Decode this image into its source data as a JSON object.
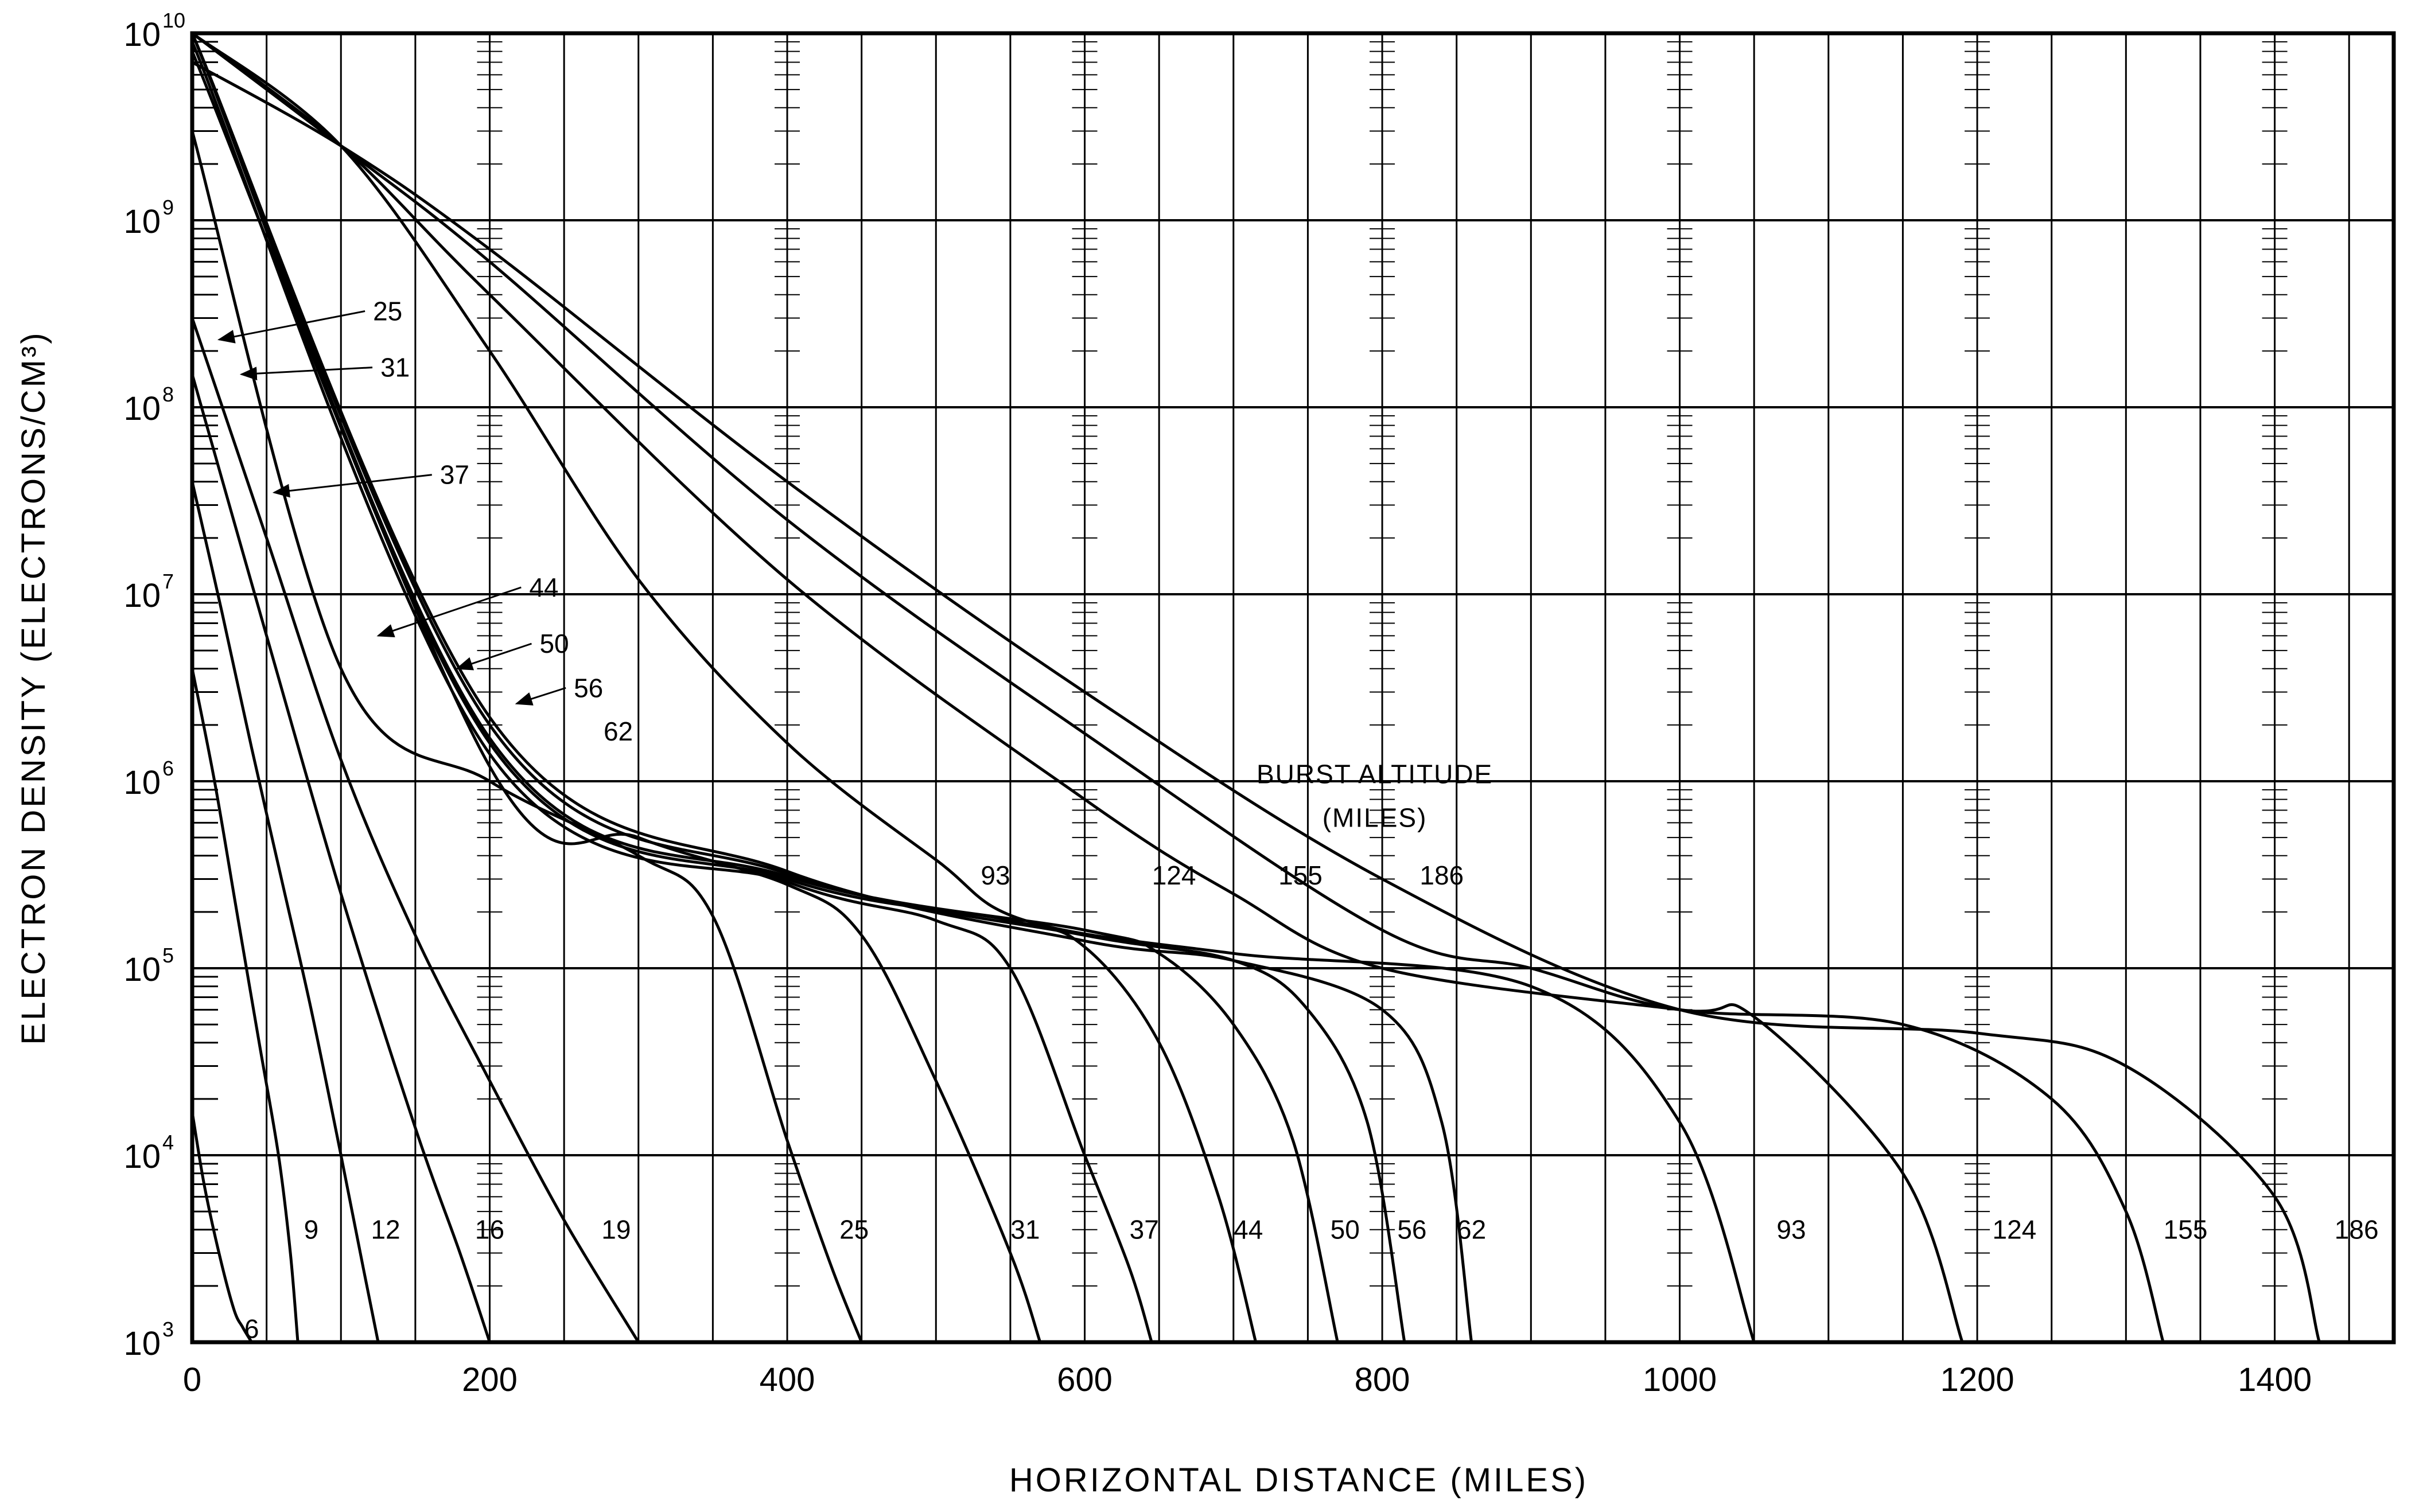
{
  "chart_data": {
    "type": "line",
    "title": "",
    "xlabel": "HORIZONTAL DISTANCE (MILES)",
    "ylabel": "ELECTRON DENSITY (ELECTRONS/CM³)",
    "xlim": [
      0,
      1480
    ],
    "ylim": [
      1000,
      10000000000
    ],
    "yscale": "log",
    "grid": true,
    "legend": "none",
    "x_ticks": [
      0,
      200,
      400,
      600,
      800,
      1000,
      1200,
      1400
    ],
    "x_tick_labels": [
      "0",
      "200",
      "400",
      "600",
      "800",
      "1000",
      "1200",
      "1400"
    ],
    "y_ticks": [
      1000,
      10000,
      100000,
      1000000,
      10000000,
      100000000,
      1000000000,
      10000000000
    ],
    "y_tick_labels": [
      {
        "base": "10",
        "exp": "3"
      },
      {
        "base": "10",
        "exp": "4"
      },
      {
        "base": "10",
        "exp": "5"
      },
      {
        "base": "10",
        "exp": "6"
      },
      {
        "base": "10",
        "exp": "7"
      },
      {
        "base": "10",
        "exp": "8"
      },
      {
        "base": "10",
        "exp": "9"
      },
      {
        "base": "10",
        "exp": "10"
      }
    ],
    "annotation": {
      "line1": "BURST ALTITUDE",
      "line2": "(MILES)"
    },
    "series": [
      {
        "name": "6",
        "x": [
          0,
          8,
          18,
          28,
          34,
          40
        ],
        "y": [
          17000,
          7000,
          3000,
          1500,
          1200,
          1000
        ]
      },
      {
        "name": "9",
        "x": [
          0,
          15,
          30,
          45,
          58,
          66,
          71
        ],
        "y": [
          4000000,
          1000000,
          200000,
          40000,
          10000,
          3000,
          1000
        ]
      },
      {
        "name": "12",
        "x": [
          0,
          20,
          40,
          60,
          80,
          100,
          115,
          125
        ],
        "y": [
          40000000,
          8000000,
          1500000,
          300000,
          60000,
          10000,
          2500,
          1000
        ]
      },
      {
        "name": "16",
        "x": [
          0,
          50,
          100,
          150,
          180,
          200
        ],
        "y": [
          150000000,
          6000000,
          250000,
          14000,
          3000,
          1000
        ]
      },
      {
        "name": "19",
        "x": [
          0,
          50,
          100,
          150,
          200,
          250,
          300
        ],
        "y": [
          300000000,
          20000000,
          1300000,
          150000,
          25000,
          4500,
          1000
        ]
      },
      {
        "name": "25",
        "x": [
          0,
          100,
          200,
          300,
          350,
          400,
          430,
          450
        ],
        "y": [
          3000000000,
          4000000,
          1000000,
          400000,
          190000,
          12000,
          2500,
          1000
        ]
      },
      {
        "name": "31",
        "x": [
          0,
          200,
          300,
          400,
          450,
          500,
          550,
          570
        ],
        "y": [
          8000000000,
          1200000,
          500000,
          280000,
          150000,
          25000,
          3000,
          1000
        ]
      },
      {
        "name": "37",
        "x": [
          0,
          200,
          400,
          500,
          550,
          600,
          630,
          645
        ],
        "y": [
          9000000000,
          1400000,
          290000,
          180000,
          100000,
          10000,
          2500,
          1000
        ]
      },
      {
        "name": "44",
        "x": [
          0,
          200,
          400,
          550,
          600,
          650,
          690,
          715
        ],
        "y": [
          10000000000,
          1600000,
          300000,
          180000,
          130000,
          40000,
          6000,
          1000
        ]
      },
      {
        "name": "50",
        "x": [
          0,
          200,
          400,
          600,
          650,
          700,
          740,
          770
        ],
        "y": [
          10000000000,
          1700000,
          310000,
          160000,
          120000,
          50000,
          12000,
          1000
        ]
      },
      {
        "name": "56",
        "x": [
          0,
          200,
          400,
          600,
          700,
          750,
          790,
          815
        ],
        "y": [
          10000000000,
          2000000,
          320000,
          150000,
          110000,
          60000,
          15000,
          1000
        ]
      },
      {
        "name": "62",
        "x": [
          0,
          200,
          400,
          600,
          700,
          800,
          840,
          860
        ],
        "y": [
          10000000000,
          2200000,
          330000,
          140000,
          110000,
          60000,
          15000,
          1000
        ]
      },
      {
        "name": "93",
        "x": [
          0,
          100,
          200,
          300,
          400,
          500,
          560,
          700,
          900,
          1000,
          1050
        ],
        "y": [
          10000000000,
          2500000000,
          200000000,
          12000000,
          1600000,
          380000,
          180000,
          120000,
          80000,
          15000,
          1000
        ]
      },
      {
        "name": "124",
        "x": [
          0,
          100,
          200,
          400,
          600,
          700,
          800,
          1000,
          1050,
          1150,
          1190
        ],
        "y": [
          10000000000,
          2500000000,
          400000000,
          12000000,
          800000,
          250000,
          100000,
          60000,
          55000,
          8000,
          1000
        ]
      },
      {
        "name": "155",
        "x": [
          0,
          100,
          200,
          400,
          600,
          800,
          900,
          1000,
          1150,
          1250,
          1300,
          1325
        ],
        "y": [
          10000000000,
          2500000000,
          600000000,
          25000000,
          1800000,
          160000,
          100000,
          60000,
          50000,
          20000,
          5000,
          1000
        ]
      },
      {
        "name": "186",
        "x": [
          0,
          100,
          200,
          400,
          600,
          800,
          1000,
          1200,
          1300,
          1400,
          1430
        ],
        "y": [
          7000000000,
          2500000000,
          700000000,
          40000000,
          3000000,
          300000,
          60000,
          45000,
          30000,
          6000,
          1000
        ]
      }
    ],
    "label_positions": {
      "6": [
        40,
        1180
      ],
      "9": [
        80,
        4000
      ],
      "12": [
        130,
        4000
      ],
      "16": [
        200,
        4000
      ],
      "19": [
        285,
        4000
      ],
      "25": [
        445,
        4000
      ],
      "31": [
        560,
        4000
      ],
      "37": [
        640,
        4000
      ],
      "44": [
        710,
        4000
      ],
      "50": [
        775,
        4000
      ],
      "56": [
        820,
        4000
      ],
      "62": [
        860,
        4000
      ],
      "93": [
        1075,
        4000
      ],
      "124": [
        1225,
        4000
      ],
      "155": [
        1340,
        4000
      ],
      "186": [
        1455,
        4000
      ]
    },
    "upper_labels": [
      {
        "text": "93",
        "at": [
          540,
          280000
        ]
      },
      {
        "text": "124",
        "at": [
          660,
          280000
        ]
      },
      {
        "text": "155",
        "at": [
          745,
          280000
        ]
      },
      {
        "text": "186",
        "at": [
          840,
          280000
        ]
      }
    ],
    "callouts": [
      {
        "text": "25",
        "label_at": [
          120,
          300000000
        ],
        "point_at": [
          15,
          230000000
        ]
      },
      {
        "text": "31",
        "label_at": [
          125,
          150000000
        ],
        "point_at": [
          30,
          150000000
        ]
      },
      {
        "text": "37",
        "label_at": [
          165,
          40000000
        ],
        "point_at": [
          52,
          35000000
        ]
      },
      {
        "text": "44",
        "label_at": [
          225,
          10000000
        ],
        "point_at": [
          122,
          6000000
        ]
      },
      {
        "text": "50",
        "label_at": [
          232,
          5000000
        ],
        "point_at": [
          175,
          4000000
        ]
      },
      {
        "text": "56",
        "label_at": [
          255,
          2900000
        ],
        "point_at": [
          215,
          2600000
        ]
      },
      {
        "text": "62",
        "label_at": [
          275,
          1700000
        ],
        "point_at": [
          275,
          1700000
        ]
      }
    ]
  }
}
